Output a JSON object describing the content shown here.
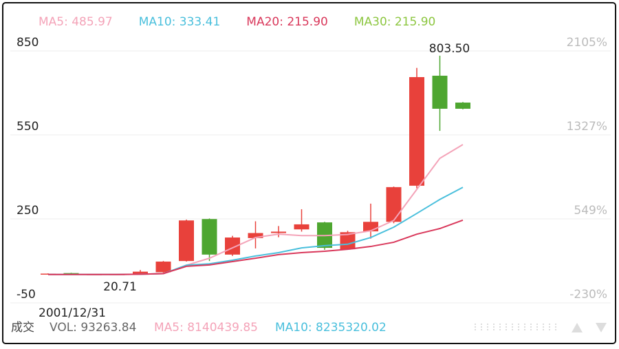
{
  "chart_data": {
    "type": "candlestick",
    "categories": [
      "2001/12/31",
      null,
      null,
      null,
      null,
      null,
      null,
      null,
      null,
      null,
      null,
      null,
      null,
      null,
      null,
      null,
      null,
      null,
      null
    ],
    "open": [
      24,
      27,
      22,
      21,
      24,
      30,
      70,
      220,
      93,
      152,
      170,
      183,
      208,
      112,
      176,
      210,
      339,
      732,
      636
    ],
    "high": [
      26,
      28,
      23,
      24,
      38,
      70,
      218,
      222,
      160,
      212,
      195,
      255,
      210,
      178,
      275,
      336,
      760,
      803.5,
      638
    ],
    "low": [
      23,
      21.5,
      21,
      20.71,
      23,
      28,
      68,
      70,
      88,
      115,
      155,
      175,
      110,
      110,
      150,
      205,
      330,
      535,
      612
    ],
    "close": [
      25,
      22,
      22.5,
      23,
      32,
      68,
      215,
      93,
      154,
      170,
      175,
      201,
      117,
      173,
      210,
      334,
      727,
      614,
      614
    ],
    "up_color": "#e8413b",
    "down_color": "#4ea630",
    "ylim": [
      -50,
      850
    ],
    "yticks": [
      -50,
      250,
      550,
      850
    ],
    "y2lim": [
      -230,
      2105
    ],
    "y2ticks": [
      {
        "value": -230,
        "label": "-230%"
      },
      {
        "value": 549,
        "label": "549%"
      },
      {
        "value": 1327,
        "label": "1327%"
      },
      {
        "value": 2105,
        "label": "2105%"
      }
    ],
    "grid": true,
    "series": [
      {
        "name": "MA5",
        "legend": "MA5: 485.97",
        "color": "#f4a3b8",
        "values": [
          22,
          22,
          22,
          22,
          23,
          25,
          55,
          80,
          117,
          154,
          166,
          161,
          161,
          165,
          178,
          215,
          326,
          437,
          485.97
        ]
      },
      {
        "name": "MA10",
        "legend": "MA10: 333.41",
        "color": "#49bfdc",
        "values": [
          22,
          22,
          22,
          22,
          23,
          25,
          55,
          60,
          73,
          88,
          100,
          117,
          125,
          130,
          154,
          191,
          240,
          290,
          333.41
        ]
      },
      {
        "name": "MA20",
        "legend": "MA20: 215.90",
        "color": "#d9375a",
        "values": [
          22,
          22,
          22,
          22,
          23,
          25,
          51,
          56,
          68,
          80,
          93,
          100,
          105,
          112,
          122,
          137,
          166,
          186,
          215.9
        ]
      },
      {
        "name": "MA30",
        "legend": "MA30: 215.90",
        "color": "#8cc63f"
      }
    ],
    "annotations": [
      {
        "value": 803.5,
        "label": "803.50",
        "index": 17
      },
      {
        "value": 20.71,
        "label": "20.71",
        "index": 3
      }
    ],
    "footer": {
      "title": "成交",
      "vol": "VOL: 93263.84",
      "ma5": "MA5: 8140439.85",
      "ma10": "MA10: 8235320.02"
    }
  }
}
